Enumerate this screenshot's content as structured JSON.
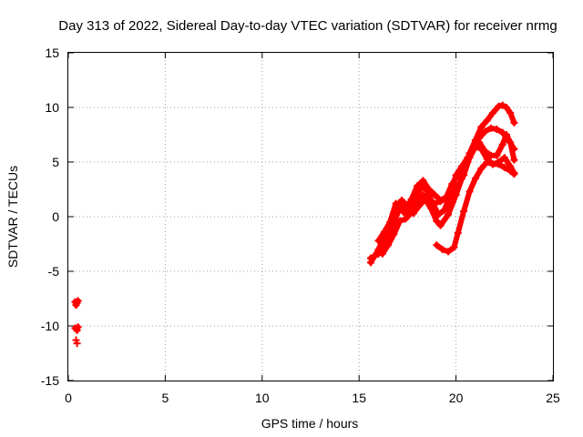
{
  "chart_data": {
    "type": "line",
    "title": "Day 313 of 2022, Sidereal Day-to-day VTEC variation (SDTVAR) for receiver nrmg",
    "xlabel": "GPS time / hours",
    "ylabel": "SDTVAR / TECUs",
    "xlim": [
      0,
      25
    ],
    "ylim": [
      -15,
      15
    ],
    "xticks": [
      0,
      5,
      10,
      15,
      20,
      25
    ],
    "yticks": [
      -15,
      -10,
      -5,
      0,
      5,
      10,
      15
    ],
    "grid": true,
    "color": "#ff0000",
    "series": [
      {
        "values": [
          [
            15.6,
            -4.2
          ],
          [
            16.0,
            -3.0
          ],
          [
            16.5,
            -1.0
          ],
          [
            16.9,
            1.2
          ],
          [
            17.2,
            1.0
          ],
          [
            17.4,
            0.6
          ],
          [
            17.7,
            1.6
          ],
          [
            18.0,
            2.8
          ],
          [
            18.3,
            3.3
          ],
          [
            18.6,
            2.5
          ],
          [
            18.9,
            2.0
          ],
          [
            19.2,
            1.5
          ],
          [
            19.5,
            1.8
          ],
          [
            19.8,
            3.0
          ],
          [
            20.1,
            3.8
          ],
          [
            20.4,
            4.3
          ],
          [
            20.7,
            5.8
          ],
          [
            21.0,
            7.0
          ],
          [
            21.3,
            8.2
          ],
          [
            21.6,
            8.8
          ],
          [
            21.9,
            9.5
          ],
          [
            22.2,
            10.1
          ],
          [
            22.4,
            10.2
          ],
          [
            22.6,
            10.0
          ],
          [
            22.8,
            9.5
          ],
          [
            23.0,
            8.6
          ]
        ]
      },
      {
        "values": [
          [
            15.6,
            -3.8
          ],
          [
            16.0,
            -3.4
          ],
          [
            16.4,
            -2.5
          ],
          [
            16.8,
            -0.5
          ],
          [
            17.1,
            0.8
          ],
          [
            17.3,
            0.4
          ],
          [
            17.6,
            0.2
          ],
          [
            17.9,
            1.4
          ],
          [
            18.2,
            2.8
          ],
          [
            18.5,
            2.4
          ],
          [
            18.8,
            1.2
          ],
          [
            19.1,
            0.2
          ],
          [
            19.4,
            0.6
          ],
          [
            19.7,
            2.0
          ],
          [
            20.0,
            3.8
          ],
          [
            20.3,
            4.6
          ],
          [
            20.6,
            5.4
          ],
          [
            20.9,
            6.4
          ],
          [
            21.2,
            7.2
          ],
          [
            21.5,
            7.8
          ],
          [
            21.8,
            8.1
          ],
          [
            22.1,
            8.0
          ],
          [
            22.4,
            7.7
          ],
          [
            22.7,
            7.0
          ],
          [
            23.0,
            6.2
          ]
        ]
      },
      {
        "values": [
          [
            16.0,
            -2.2
          ],
          [
            16.3,
            -1.4
          ],
          [
            16.6,
            -0.5
          ],
          [
            16.9,
            0.9
          ],
          [
            17.2,
            1.5
          ],
          [
            17.5,
            1.0
          ],
          [
            17.8,
            0.3
          ],
          [
            18.1,
            1.0
          ],
          [
            18.4,
            1.6
          ],
          [
            18.7,
            0.8
          ],
          [
            19.0,
            -0.4
          ],
          [
            19.2,
            -0.8
          ],
          [
            19.6,
            0.2
          ],
          [
            20.0,
            2.0
          ],
          [
            20.3,
            3.5
          ],
          [
            20.6,
            5.0
          ],
          [
            20.9,
            6.3
          ],
          [
            21.2,
            6.8
          ],
          [
            21.5,
            6.0
          ],
          [
            21.8,
            5.6
          ],
          [
            22.1,
            5.6
          ],
          [
            22.4,
            6.6
          ],
          [
            22.6,
            7.5
          ],
          [
            22.8,
            6.8
          ],
          [
            23.0,
            5.2
          ]
        ]
      },
      {
        "values": [
          [
            16.2,
            -3.4
          ],
          [
            16.5,
            -2.6
          ],
          [
            16.8,
            -1.6
          ],
          [
            17.1,
            -0.4
          ],
          [
            17.4,
            -0.2
          ],
          [
            17.7,
            0.4
          ],
          [
            18.0,
            1.3
          ],
          [
            18.3,
            2.0
          ],
          [
            18.6,
            1.6
          ],
          [
            18.9,
            1.2
          ],
          [
            19.2,
            1.4
          ],
          [
            19.5,
            1.7
          ],
          [
            19.8,
            2.1
          ],
          [
            20.1,
            2.8
          ],
          [
            20.4,
            3.8
          ],
          [
            20.7,
            5.4
          ],
          [
            21.0,
            6.4
          ],
          [
            21.3,
            6.2
          ],
          [
            21.6,
            5.3
          ],
          [
            21.9,
            4.8
          ],
          [
            22.2,
            5.0
          ],
          [
            22.5,
            5.4
          ],
          [
            22.8,
            4.6
          ],
          [
            23.0,
            4.0
          ]
        ]
      },
      {
        "values": [
          [
            19.0,
            -2.6
          ],
          [
            19.3,
            -3.0
          ],
          [
            19.6,
            -3.2
          ],
          [
            19.9,
            -2.8
          ],
          [
            20.1,
            -1.5
          ],
          [
            20.4,
            0.5
          ],
          [
            20.7,
            2.3
          ],
          [
            21.0,
            3.5
          ],
          [
            21.3,
            4.4
          ],
          [
            21.6,
            5.0
          ],
          [
            21.9,
            4.8
          ],
          [
            22.2,
            4.8
          ],
          [
            22.5,
            4.5
          ],
          [
            22.8,
            4.2
          ],
          [
            23.0,
            3.9
          ]
        ]
      },
      {
        "values": [
          [
            0.35,
            -7.8
          ],
          [
            0.4,
            -8.1
          ],
          [
            0.45,
            -7.9
          ],
          [
            0.5,
            -7.7
          ]
        ]
      },
      {
        "values": [
          [
            0.35,
            -10.2
          ],
          [
            0.45,
            -10.4
          ],
          [
            0.5,
            -10.1
          ]
        ]
      },
      {
        "values": [
          [
            0.4,
            -11.3
          ],
          [
            0.45,
            -11.6
          ]
        ]
      }
    ]
  }
}
